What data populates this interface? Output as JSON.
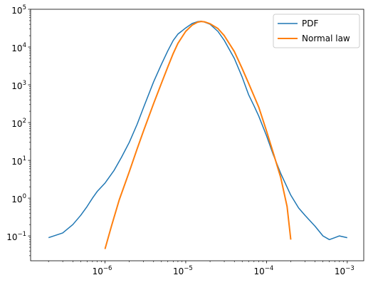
{
  "chart_data": {
    "type": "line",
    "title": "",
    "xlabel": "",
    "ylabel": "",
    "xscale": "log",
    "yscale": "log",
    "xlim": [
      1.2e-07,
      0.0016
    ],
    "ylim": [
      0.022,
      100000
    ],
    "x_ticks": [
      {
        "value": 1e-06,
        "base": "10",
        "exp": "−6"
      },
      {
        "value": 1e-05,
        "base": "10",
        "exp": "−5"
      },
      {
        "value": 0.0001,
        "base": "10",
        "exp": "−4"
      },
      {
        "value": 0.001,
        "base": "10",
        "exp": "−3"
      }
    ],
    "y_ticks": [
      {
        "value": 0.1,
        "base": "10",
        "exp": "−1"
      },
      {
        "value": 1,
        "base": "10",
        "exp": "0"
      },
      {
        "value": 10,
        "base": "10",
        "exp": "1"
      },
      {
        "value": 100,
        "base": "10",
        "exp": "2"
      },
      {
        "value": 1000,
        "base": "10",
        "exp": "3"
      },
      {
        "value": 10000,
        "base": "10",
        "exp": "4"
      },
      {
        "value": 100000,
        "base": "10",
        "exp": "5"
      }
    ],
    "grid": false,
    "legend_position": "top-right",
    "series": [
      {
        "name": "PDF",
        "color": "#1f77b4",
        "x": [
          2e-07,
          3e-07,
          4e-07,
          5e-07,
          6e-07,
          7e-07,
          8e-07,
          1e-06,
          1.3e-06,
          1.6e-06,
          2e-06,
          2.5e-06,
          3e-06,
          4e-06,
          5e-06,
          6e-06,
          7e-06,
          8e-06,
          1e-05,
          1.2e-05,
          1.4e-05,
          1.55e-05,
          1.7e-05,
          2e-05,
          2.5e-05,
          3e-05,
          4e-05,
          5e-05,
          6e-05,
          7e-05,
          8e-05,
          0.0001,
          0.00012,
          0.00015,
          0.0002,
          0.00025,
          0.0003,
          0.0004,
          0.0005,
          0.0006,
          0.0007,
          0.0008,
          0.001
        ],
        "y": [
          0.09,
          0.12,
          0.2,
          0.35,
          0.6,
          1.0,
          1.5,
          2.5,
          5.5,
          12,
          30,
          90,
          250,
          1200,
          3500,
          8000,
          15000,
          22000,
          32000,
          42000,
          47000,
          48000,
          46000,
          40000,
          26000,
          15000,
          5000,
          1600,
          550,
          280,
          150,
          45,
          15,
          4.5,
          1.2,
          0.55,
          0.35,
          0.18,
          0.1,
          0.08,
          0.09,
          0.1,
          0.09
        ]
      },
      {
        "name": "Normal law",
        "color": "#ff7f0e",
        "x": [
          1e-06,
          1.2e-06,
          1.5e-06,
          2e-06,
          2.5e-06,
          3e-06,
          4e-06,
          5e-06,
          6e-06,
          7e-06,
          8e-06,
          1e-05,
          1.2e-05,
          1.4e-05,
          1.55e-05,
          1.7e-05,
          2e-05,
          2.5e-05,
          3e-05,
          4e-05,
          5e-05,
          6e-05,
          8e-05,
          0.0001,
          0.00012,
          0.00015,
          0.00018,
          0.0002
        ],
        "y": [
          0.045,
          0.18,
          0.9,
          5,
          20,
          60,
          320,
          1100,
          3000,
          6800,
          12500,
          26000,
          38000,
          45500,
          47500,
          46500,
          41500,
          31000,
          20000,
          7600,
          2700,
          1100,
          260,
          60,
          17,
          3.5,
          0.6,
          0.08
        ]
      }
    ]
  }
}
